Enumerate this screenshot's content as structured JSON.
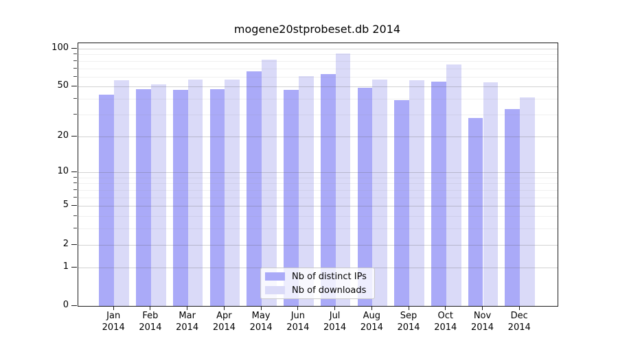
{
  "chart_data": {
    "type": "bar",
    "title": "mogene20stprobeset.db 2014",
    "scale": "log1p",
    "grid": true,
    "legend_position": "lower center",
    "x_tick_labels": [
      "Jan 2014",
      "Feb 2014",
      "Mar 2014",
      "Apr 2014",
      "May 2014",
      "Jun 2014",
      "Jul 2014",
      "Aug 2014",
      "Sep 2014",
      "Oct 2014",
      "Nov 2014",
      "Dec 2014"
    ],
    "series": [
      {
        "name": "Nb of distinct IPs",
        "color": "#aaaaf8",
        "values": [
          43,
          48,
          47,
          48,
          66,
          47,
          63,
          49,
          39,
          55,
          28,
          33
        ]
      },
      {
        "name": "Nb of downloads",
        "color": "#dadaf8",
        "values": [
          56,
          52,
          57,
          57,
          82,
          61,
          92,
          57,
          56,
          75,
          54,
          41
        ]
      }
    ],
    "ylim": [
      0,
      110.4
    ],
    "y_major_ticks": [
      100,
      50,
      20,
      10,
      5,
      2,
      1,
      0
    ],
    "y_minor_ticks": [
      3,
      4,
      6,
      7,
      8,
      9,
      30,
      40,
      60,
      70,
      80,
      90
    ],
    "colors": {
      "frame": "#1a1a1a",
      "background": "#ffffff",
      "major_grid": "#d6d6d6",
      "minor_grid": "#ededed"
    }
  }
}
